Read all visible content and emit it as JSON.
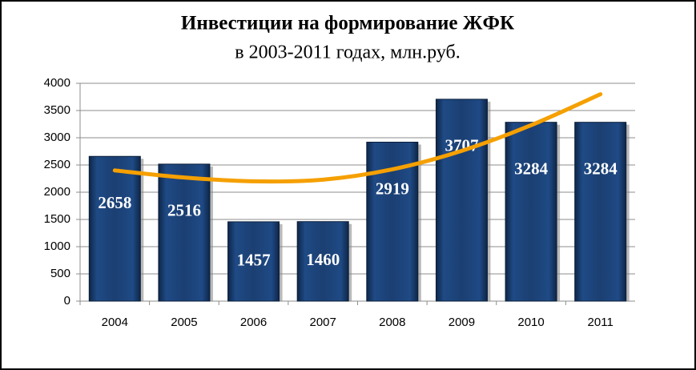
{
  "chart_data": {
    "type": "bar",
    "title": "Инвестиции на формирование ЖФК",
    "subtitle": "в 2003-2011  годах, млн.руб.",
    "categories": [
      "2004",
      "2005",
      "2006",
      "2007",
      "2008",
      "2009",
      "2010",
      "2011"
    ],
    "values": [
      2658,
      2516,
      1457,
      1460,
      2919,
      3707,
      3284,
      3284
    ],
    "color": "#1b3f72",
    "trendline": {
      "color": "#f5a000",
      "values": [
        2400,
        2270,
        2200,
        2230,
        2420,
        2760,
        3230,
        3800
      ]
    },
    "ylim": [
      0,
      4000
    ],
    "yticks": [
      0,
      500,
      1000,
      1500,
      2000,
      2500,
      3000,
      3500,
      4000
    ],
    "grid": true
  }
}
